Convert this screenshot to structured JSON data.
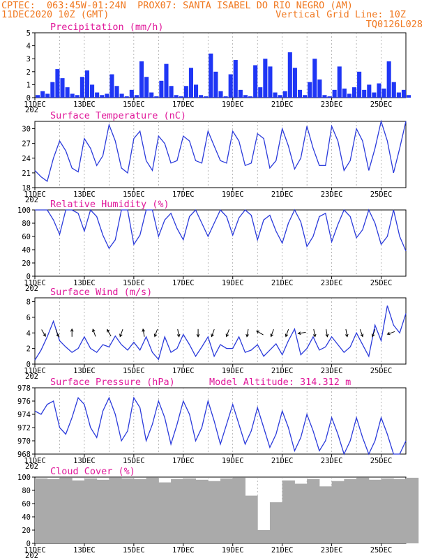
{
  "header": {
    "line1": "CPTEC:  063:45W-01:24N  PROX07: SANTA ISABEL DO RIO NEGRO (AM)",
    "line2_left": "11DEC2020 10Z (GMT)",
    "line2_right": "Vertical Grid Line: 10Z",
    "line3_right": "TQ0126L028",
    "model_altitude": "Model Altitude: 314.312 m"
  },
  "x_dates": [
    "11DEC",
    "13DEC",
    "15DEC",
    "17DEC",
    "19DEC",
    "21DEC",
    "23DEC",
    "25DEC"
  ],
  "x_year": "202",
  "colors": {
    "line": "#2b3bdb",
    "bar": "#1f36f5",
    "cloud": "#aaaaaa",
    "title": "#e0189a",
    "header": "#f07820",
    "wind_arrow": "#000000"
  },
  "chart_data": [
    {
      "type": "bar",
      "title": "Precipitation (mm/h)",
      "ylim": [
        0,
        5
      ],
      "yticks": [
        0,
        1,
        2,
        3,
        4,
        5
      ],
      "x_days": [
        0,
        0.2,
        0.4,
        0.6,
        0.8,
        1.0,
        1.2,
        1.4,
        1.6,
        1.8,
        2.0,
        2.2,
        2.4,
        2.6,
        2.8,
        3.0,
        3.2,
        3.4,
        3.6,
        3.8,
        4.0,
        4.2,
        4.4,
        4.6,
        4.8,
        5.0,
        5.2,
        5.4,
        5.6,
        5.8,
        6.0,
        6.2,
        6.4,
        6.6,
        6.8,
        7.0,
        7.2,
        7.4,
        7.6,
        7.8,
        8.0,
        8.2,
        8.4,
        8.6,
        8.8,
        9.0,
        9.2,
        9.4,
        9.6,
        9.8,
        10.0,
        10.2,
        10.4,
        10.6,
        10.8,
        11.0,
        11.2,
        11.4,
        11.6,
        11.8,
        12.0,
        12.2,
        12.4,
        12.6,
        12.8,
        13.0,
        13.2,
        13.4,
        13.6,
        13.8,
        14.0,
        14.2,
        14.4,
        14.6,
        14.8,
        15.0
      ],
      "values": [
        0.2,
        0.5,
        0.3,
        1.2,
        2.2,
        1.5,
        0.8,
        0.3,
        0.2,
        1.6,
        2.1,
        1.0,
        0.4,
        0.2,
        0.3,
        1.8,
        0.9,
        0.3,
        0.1,
        0.6,
        0.2,
        2.8,
        1.6,
        0.4,
        0.1,
        1.3,
        2.6,
        0.9,
        0.2,
        0.1,
        0.9,
        2.3,
        1.0,
        0.2,
        0.1,
        3.4,
        2.0,
        0.5,
        0.1,
        1.8,
        2.9,
        0.6,
        0.2,
        0.1,
        2.5,
        0.8,
        3.0,
        2.4,
        0.4,
        0.2,
        0.5,
        3.5,
        2.3,
        0.6,
        0.2,
        1.2,
        3.0,
        1.4,
        0.2,
        0.1,
        0.6,
        2.4,
        0.7,
        0.3,
        0.8,
        2.0,
        0.6,
        1.0,
        0.4,
        1.1,
        0.7,
        2.8,
        1.2,
        0.4,
        0.6,
        0.2
      ]
    },
    {
      "type": "line",
      "title": "Surface Temperature (nC)",
      "ylim": [
        18,
        31.5
      ],
      "yticks": [
        18,
        21,
        24,
        27,
        30
      ],
      "x_days": [
        0,
        0.25,
        0.5,
        0.75,
        1.0,
        1.25,
        1.5,
        1.75,
        2.0,
        2.25,
        2.5,
        2.75,
        3.0,
        3.25,
        3.5,
        3.75,
        4.0,
        4.25,
        4.5,
        4.75,
        5.0,
        5.25,
        5.5,
        5.75,
        6.0,
        6.25,
        6.5,
        6.75,
        7.0,
        7.25,
        7.5,
        7.75,
        8.0,
        8.25,
        8.5,
        8.75,
        9.0,
        9.25,
        9.5,
        9.75,
        10.0,
        10.25,
        10.5,
        10.75,
        11.0,
        11.25,
        11.5,
        11.75,
        12.0,
        12.25,
        12.5,
        12.75,
        13.0,
        13.25,
        13.5,
        13.75,
        14.0,
        14.25,
        14.5,
        14.75,
        15.0
      ],
      "values": [
        21.5,
        20.2,
        19.3,
        24.0,
        27.5,
        25.5,
        22.0,
        21.2,
        28.0,
        26.0,
        22.5,
        24.5,
        30.8,
        27.5,
        22.0,
        21.0,
        28.0,
        29.5,
        23.5,
        21.5,
        28.5,
        27.0,
        23.0,
        23.5,
        28.5,
        27.5,
        23.5,
        23.0,
        29.5,
        26.5,
        23.5,
        23.0,
        29.5,
        27.5,
        22.5,
        23.0,
        29.0,
        28.0,
        22.0,
        23.5,
        30.0,
        26.5,
        21.8,
        24.0,
        30.5,
        26.0,
        22.5,
        22.5,
        30.5,
        27.5,
        21.5,
        23.5,
        30.0,
        27.5,
        21.5,
        26.0,
        31.5,
        27.5,
        21.0,
        26.0,
        31.5
      ]
    },
    {
      "type": "line",
      "title": "Relative Humidity (%)",
      "ylim": [
        0,
        100
      ],
      "yticks": [
        0,
        20,
        40,
        60,
        80,
        100
      ],
      "x_days": [
        0,
        0.25,
        0.5,
        0.75,
        1.0,
        1.25,
        1.5,
        1.75,
        2.0,
        2.25,
        2.5,
        2.75,
        3.0,
        3.25,
        3.5,
        3.75,
        4.0,
        4.25,
        4.5,
        4.75,
        5.0,
        5.25,
        5.5,
        5.75,
        6.0,
        6.25,
        6.5,
        6.75,
        7.0,
        7.25,
        7.5,
        7.75,
        8.0,
        8.25,
        8.5,
        8.75,
        9.0,
        9.25,
        9.5,
        9.75,
        10.0,
        10.25,
        10.5,
        10.75,
        11.0,
        11.25,
        11.5,
        11.75,
        12.0,
        12.25,
        12.5,
        12.75,
        13.0,
        13.25,
        13.5,
        13.75,
        14.0,
        14.25,
        14.5,
        14.75,
        15.0
      ],
      "values": [
        100,
        100,
        100,
        85,
        63,
        100,
        100,
        95,
        68,
        100,
        90,
        62,
        42,
        55,
        100,
        100,
        48,
        62,
        100,
        100,
        60,
        85,
        95,
        72,
        55,
        90,
        100,
        80,
        60,
        80,
        100,
        90,
        62,
        88,
        100,
        92,
        55,
        85,
        92,
        68,
        50,
        80,
        100,
        82,
        45,
        60,
        90,
        95,
        52,
        78,
        100,
        90,
        58,
        70,
        100,
        80,
        48,
        60,
        100,
        60,
        38
      ]
    },
    {
      "type": "line",
      "title": "Surface Wind (m/s)",
      "ylim": [
        0,
        8.5
      ],
      "yticks": [
        0,
        2,
        4,
        6,
        8
      ],
      "x_days": [
        0,
        0.25,
        0.5,
        0.75,
        1.0,
        1.25,
        1.5,
        1.75,
        2.0,
        2.25,
        2.5,
        2.75,
        3.0,
        3.25,
        3.5,
        3.75,
        4.0,
        4.25,
        4.5,
        4.75,
        5.0,
        5.25,
        5.5,
        5.75,
        6.0,
        6.25,
        6.5,
        6.75,
        7.0,
        7.25,
        7.5,
        7.75,
        8.0,
        8.25,
        8.5,
        8.75,
        9.0,
        9.25,
        9.5,
        9.75,
        10.0,
        10.25,
        10.5,
        10.75,
        11.0,
        11.25,
        11.5,
        11.75,
        12.0,
        12.25,
        12.5,
        12.75,
        13.0,
        13.25,
        13.5,
        13.75,
        14.0,
        14.25,
        14.5,
        14.75,
        15.0
      ],
      "values": [
        0.5,
        1.8,
        3.5,
        5.5,
        3.0,
        2.2,
        1.5,
        2.0,
        3.5,
        2.0,
        1.5,
        2.5,
        2.2,
        3.6,
        2.5,
        1.8,
        2.8,
        1.8,
        3.5,
        1.5,
        0.6,
        3.5,
        1.5,
        2.0,
        3.8,
        2.5,
        1.0,
        2.2,
        3.5,
        1.0,
        2.5,
        2.0,
        2.0,
        3.5,
        1.5,
        1.8,
        2.5,
        1.0,
        1.8,
        2.6,
        1.2,
        3.0,
        4.5,
        1.2,
        2.0,
        3.5,
        1.8,
        2.2,
        3.5,
        2.5,
        1.5,
        2.2,
        4.0,
        2.5,
        1.0,
        5.0,
        3.0,
        7.5,
        5.0,
        4.0,
        6.5
      ]
    },
    {
      "type": "line",
      "title": "Surface Pressure (hPa)",
      "ylim": [
        968,
        978
      ],
      "yticks": [
        968,
        970,
        972,
        974,
        976,
        978
      ],
      "x_days": [
        0,
        0.25,
        0.5,
        0.75,
        1.0,
        1.25,
        1.5,
        1.75,
        2.0,
        2.25,
        2.5,
        2.75,
        3.0,
        3.25,
        3.5,
        3.75,
        4.0,
        4.25,
        4.5,
        4.75,
        5.0,
        5.25,
        5.5,
        5.75,
        6.0,
        6.25,
        6.5,
        6.75,
        7.0,
        7.25,
        7.5,
        7.75,
        8.0,
        8.25,
        8.5,
        8.75,
        9.0,
        9.25,
        9.5,
        9.75,
        10.0,
        10.25,
        10.5,
        10.75,
        11.0,
        11.25,
        11.5,
        11.75,
        12.0,
        12.25,
        12.5,
        12.75,
        13.0,
        13.25,
        13.5,
        13.75,
        14.0,
        14.25,
        14.5,
        14.75,
        15.0
      ],
      "values": [
        974.5,
        974.0,
        975.5,
        976.0,
        972.0,
        971.0,
        973.5,
        976.5,
        975.5,
        972.0,
        970.5,
        974.5,
        976.5,
        974.0,
        970.0,
        971.5,
        976.5,
        975.0,
        970.0,
        972.5,
        976.0,
        973.5,
        969.5,
        972.5,
        976.0,
        974.0,
        970.0,
        972.0,
        976.0,
        973.0,
        969.5,
        972.5,
        975.5,
        972.5,
        969.5,
        971.5,
        975.0,
        972.0,
        969.0,
        971.0,
        974.5,
        972.0,
        968.5,
        970.5,
        974.0,
        971.5,
        968.5,
        970.0,
        973.5,
        971.0,
        968.0,
        970.0,
        973.5,
        970.5,
        968.0,
        970.0,
        973.5,
        971.0,
        968.0,
        968.0,
        970.0
      ]
    },
    {
      "type": "area",
      "title": "Cloud Cover (%)",
      "ylim": [
        0,
        100
      ],
      "yticks": [
        0,
        20,
        40,
        60,
        80,
        100
      ],
      "x_days": [
        0,
        0.5,
        1.0,
        1.5,
        2.0,
        2.5,
        3.0,
        3.5,
        4.0,
        4.5,
        5.0,
        5.5,
        6.0,
        6.5,
        7.0,
        7.5,
        8.0,
        8.5,
        9.0,
        9.5,
        10.0,
        10.5,
        11.0,
        11.5,
        12.0,
        12.5,
        13.0,
        13.5,
        14.0,
        14.5,
        15.0
      ],
      "values": [
        98,
        97,
        99,
        95,
        98,
        96,
        99,
        98,
        97,
        99,
        92,
        97,
        98,
        96,
        94,
        98,
        99,
        72,
        20,
        62,
        95,
        90,
        97,
        86,
        94,
        97,
        99,
        96,
        98,
        97,
        99
      ]
    }
  ],
  "wind_arrows": [
    {
      "day": 0.35,
      "dir_deg": 150
    },
    {
      "day": 0.9,
      "dir_deg": 160
    },
    {
      "day": 1.5,
      "dir_deg": 0
    },
    {
      "day": 2.4,
      "dir_deg": 340
    },
    {
      "day": 3.0,
      "dir_deg": 330
    },
    {
      "day": 3.5,
      "dir_deg": 200
    },
    {
      "day": 4.4,
      "dir_deg": 350
    },
    {
      "day": 4.9,
      "dir_deg": 200
    },
    {
      "day": 5.8,
      "dir_deg": 170
    },
    {
      "day": 6.6,
      "dir_deg": 180
    },
    {
      "day": 7.2,
      "dir_deg": 200
    },
    {
      "day": 7.8,
      "dir_deg": 200
    },
    {
      "day": 8.6,
      "dir_deg": 190
    },
    {
      "day": 9.1,
      "dir_deg": 300
    },
    {
      "day": 9.6,
      "dir_deg": 200
    },
    {
      "day": 10.2,
      "dir_deg": 200
    },
    {
      "day": 10.8,
      "dir_deg": 260
    },
    {
      "day": 11.3,
      "dir_deg": 170
    },
    {
      "day": 11.8,
      "dir_deg": 170
    },
    {
      "day": 12.6,
      "dir_deg": 170
    },
    {
      "day": 13.2,
      "dir_deg": 160
    },
    {
      "day": 13.7,
      "dir_deg": 200
    },
    {
      "day": 14.4,
      "dir_deg": 250
    }
  ]
}
